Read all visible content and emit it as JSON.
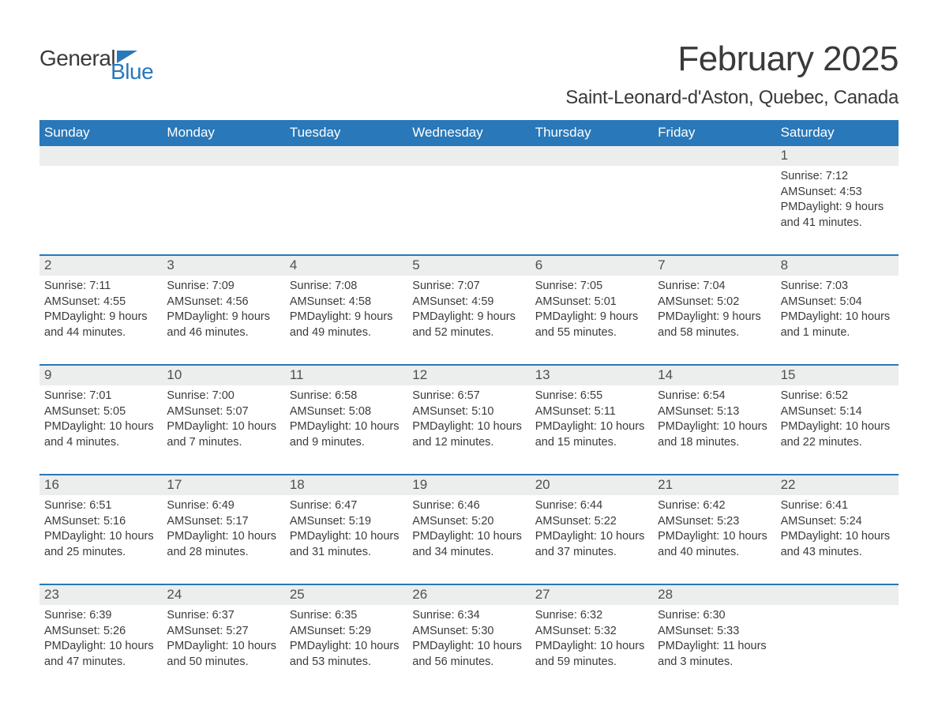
{
  "logo": {
    "word1": "General",
    "word2": "Blue"
  },
  "title": "February 2025",
  "location": "Saint-Leonard-d'Aston, Quebec, Canada",
  "colors": {
    "header_bg": "#2978b9",
    "header_text": "#ffffff",
    "daynum_bg": "#eceded",
    "text": "#373737",
    "rule": "#2978b9",
    "background": "#ffffff"
  },
  "typography": {
    "title_fontsize": 44,
    "location_fontsize": 24,
    "weekday_fontsize": 17,
    "daynum_fontsize": 17,
    "body_fontsize": 14.5
  },
  "weekdays": [
    "Sunday",
    "Monday",
    "Tuesday",
    "Wednesday",
    "Thursday",
    "Friday",
    "Saturday"
  ],
  "labels": {
    "sunrise_prefix": "Sunrise: ",
    "sunset_prefix": "Sunset: ",
    "daylight_prefix": "Daylight: "
  },
  "weeks": [
    {
      "days": [
        {
          "num": "",
          "sunrise": "",
          "sunset": "",
          "daylight": ""
        },
        {
          "num": "",
          "sunrise": "",
          "sunset": "",
          "daylight": ""
        },
        {
          "num": "",
          "sunrise": "",
          "sunset": "",
          "daylight": ""
        },
        {
          "num": "",
          "sunrise": "",
          "sunset": "",
          "daylight": ""
        },
        {
          "num": "",
          "sunrise": "",
          "sunset": "",
          "daylight": ""
        },
        {
          "num": "",
          "sunrise": "",
          "sunset": "",
          "daylight": ""
        },
        {
          "num": "1",
          "sunrise": "7:12 AM",
          "sunset": "4:53 PM",
          "daylight": "9 hours and 41 minutes."
        }
      ]
    },
    {
      "days": [
        {
          "num": "2",
          "sunrise": "7:11 AM",
          "sunset": "4:55 PM",
          "daylight": "9 hours and 44 minutes."
        },
        {
          "num": "3",
          "sunrise": "7:09 AM",
          "sunset": "4:56 PM",
          "daylight": "9 hours and 46 minutes."
        },
        {
          "num": "4",
          "sunrise": "7:08 AM",
          "sunset": "4:58 PM",
          "daylight": "9 hours and 49 minutes."
        },
        {
          "num": "5",
          "sunrise": "7:07 AM",
          "sunset": "4:59 PM",
          "daylight": "9 hours and 52 minutes."
        },
        {
          "num": "6",
          "sunrise": "7:05 AM",
          "sunset": "5:01 PM",
          "daylight": "9 hours and 55 minutes."
        },
        {
          "num": "7",
          "sunrise": "7:04 AM",
          "sunset": "5:02 PM",
          "daylight": "9 hours and 58 minutes."
        },
        {
          "num": "8",
          "sunrise": "7:03 AM",
          "sunset": "5:04 PM",
          "daylight": "10 hours and 1 minute."
        }
      ]
    },
    {
      "days": [
        {
          "num": "9",
          "sunrise": "7:01 AM",
          "sunset": "5:05 PM",
          "daylight": "10 hours and 4 minutes."
        },
        {
          "num": "10",
          "sunrise": "7:00 AM",
          "sunset": "5:07 PM",
          "daylight": "10 hours and 7 minutes."
        },
        {
          "num": "11",
          "sunrise": "6:58 AM",
          "sunset": "5:08 PM",
          "daylight": "10 hours and 9 minutes."
        },
        {
          "num": "12",
          "sunrise": "6:57 AM",
          "sunset": "5:10 PM",
          "daylight": "10 hours and 12 minutes."
        },
        {
          "num": "13",
          "sunrise": "6:55 AM",
          "sunset": "5:11 PM",
          "daylight": "10 hours and 15 minutes."
        },
        {
          "num": "14",
          "sunrise": "6:54 AM",
          "sunset": "5:13 PM",
          "daylight": "10 hours and 18 minutes."
        },
        {
          "num": "15",
          "sunrise": "6:52 AM",
          "sunset": "5:14 PM",
          "daylight": "10 hours and 22 minutes."
        }
      ]
    },
    {
      "days": [
        {
          "num": "16",
          "sunrise": "6:51 AM",
          "sunset": "5:16 PM",
          "daylight": "10 hours and 25 minutes."
        },
        {
          "num": "17",
          "sunrise": "6:49 AM",
          "sunset": "5:17 PM",
          "daylight": "10 hours and 28 minutes."
        },
        {
          "num": "18",
          "sunrise": "6:47 AM",
          "sunset": "5:19 PM",
          "daylight": "10 hours and 31 minutes."
        },
        {
          "num": "19",
          "sunrise": "6:46 AM",
          "sunset": "5:20 PM",
          "daylight": "10 hours and 34 minutes."
        },
        {
          "num": "20",
          "sunrise": "6:44 AM",
          "sunset": "5:22 PM",
          "daylight": "10 hours and 37 minutes."
        },
        {
          "num": "21",
          "sunrise": "6:42 AM",
          "sunset": "5:23 PM",
          "daylight": "10 hours and 40 minutes."
        },
        {
          "num": "22",
          "sunrise": "6:41 AM",
          "sunset": "5:24 PM",
          "daylight": "10 hours and 43 minutes."
        }
      ]
    },
    {
      "days": [
        {
          "num": "23",
          "sunrise": "6:39 AM",
          "sunset": "5:26 PM",
          "daylight": "10 hours and 47 minutes."
        },
        {
          "num": "24",
          "sunrise": "6:37 AM",
          "sunset": "5:27 PM",
          "daylight": "10 hours and 50 minutes."
        },
        {
          "num": "25",
          "sunrise": "6:35 AM",
          "sunset": "5:29 PM",
          "daylight": "10 hours and 53 minutes."
        },
        {
          "num": "26",
          "sunrise": "6:34 AM",
          "sunset": "5:30 PM",
          "daylight": "10 hours and 56 minutes."
        },
        {
          "num": "27",
          "sunrise": "6:32 AM",
          "sunset": "5:32 PM",
          "daylight": "10 hours and 59 minutes."
        },
        {
          "num": "28",
          "sunrise": "6:30 AM",
          "sunset": "5:33 PM",
          "daylight": "11 hours and 3 minutes."
        },
        {
          "num": "",
          "sunrise": "",
          "sunset": "",
          "daylight": ""
        }
      ]
    }
  ]
}
